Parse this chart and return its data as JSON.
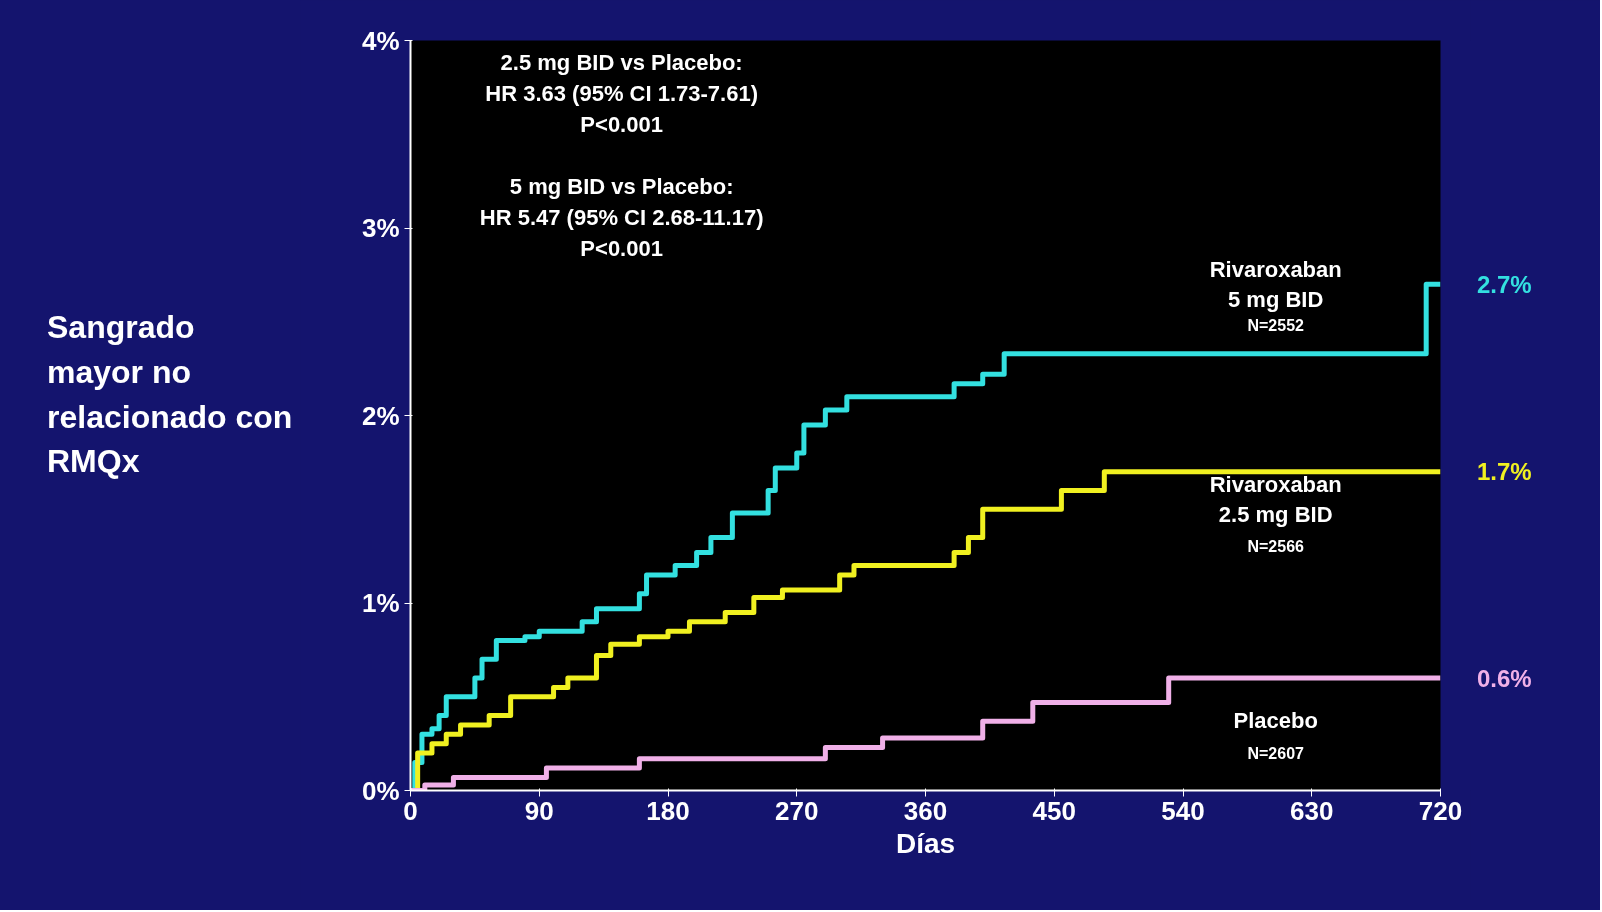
{
  "chart_data": {
    "type": "step",
    "ylabel": "Sangrado mayor no relacionado con RMQx",
    "xlabel": "Días",
    "xlim": [
      0,
      720
    ],
    "xticks": [
      0,
      90,
      180,
      270,
      360,
      450,
      540,
      630,
      720
    ],
    "ylim": [
      0,
      4
    ],
    "yticks": [
      {
        "value": 0,
        "label": "0%"
      },
      {
        "value": 1,
        "label": "1%"
      },
      {
        "value": 2,
        "label": "2%"
      },
      {
        "value": 3,
        "label": "3%"
      },
      {
        "value": 4,
        "label": "4%"
      }
    ],
    "grid": false,
    "marker": "none",
    "line_style": "solid",
    "annotations": [
      "2.5 mg BID vs Placebo:",
      "HR 3.63 (95% CI 1.73-7.61)",
      "P<0.001",
      "5 mg BID vs Placebo:",
      "HR 5.47 (95% CI 2.68-11.17)",
      "P<0.001",
      "N=2552",
      "N=2566",
      "N=2607"
    ],
    "series": [
      {
        "name": "Rivaroxaban 5 mg BID",
        "color": "#33e0e0",
        "x": [
          0,
          3,
          8,
          15,
          20,
          25,
          45,
          50,
          60,
          80,
          90,
          120,
          130,
          160,
          165,
          185,
          200,
          210,
          225,
          250,
          255,
          270,
          275,
          290,
          305,
          380,
          400,
          415,
          710,
          720
        ],
        "values": [
          0,
          0.15,
          0.3,
          0.33,
          0.4,
          0.5,
          0.6,
          0.7,
          0.8,
          0.82,
          0.85,
          0.9,
          0.97,
          1.05,
          1.15,
          1.2,
          1.27,
          1.35,
          1.48,
          1.6,
          1.72,
          1.8,
          1.95,
          2.03,
          2.1,
          2.17,
          2.22,
          2.33,
          2.7,
          2.7
        ],
        "value_labels": [
          null,
          null,
          null,
          null,
          null,
          null,
          null,
          null,
          null,
          null,
          null,
          null,
          null,
          null,
          null,
          null,
          null,
          null,
          null,
          null,
          null,
          null,
          null,
          null,
          null,
          null,
          null,
          null,
          null,
          "2.7%"
        ]
      },
      {
        "name": "Rivaroxaban 2.5 mg BID",
        "color": "#f0f020",
        "x": [
          0,
          5,
          15,
          25,
          35,
          55,
          70,
          100,
          110,
          130,
          140,
          160,
          180,
          195,
          220,
          240,
          260,
          300,
          310,
          380,
          390,
          400,
          455,
          485,
          720
        ],
        "values": [
          0,
          0.2,
          0.25,
          0.3,
          0.35,
          0.4,
          0.5,
          0.55,
          0.6,
          0.72,
          0.78,
          0.82,
          0.85,
          0.9,
          0.95,
          1.03,
          1.07,
          1.15,
          1.2,
          1.27,
          1.35,
          1.5,
          1.6,
          1.7,
          1.7
        ],
        "value_labels": [
          null,
          null,
          null,
          null,
          null,
          null,
          null,
          null,
          null,
          null,
          null,
          null,
          null,
          null,
          null,
          null,
          null,
          null,
          null,
          null,
          null,
          null,
          null,
          null,
          "1.7%"
        ]
      },
      {
        "name": "Placebo",
        "color": "#f0b0e8",
        "x": [
          0,
          10,
          30,
          95,
          160,
          290,
          330,
          400,
          435,
          530,
          720
        ],
        "values": [
          0,
          0.03,
          0.07,
          0.12,
          0.17,
          0.23,
          0.28,
          0.37,
          0.47,
          0.6,
          0.6
        ],
        "value_labels": [
          null,
          null,
          null,
          null,
          null,
          null,
          null,
          null,
          null,
          null,
          "0.6%"
        ]
      }
    ]
  }
}
